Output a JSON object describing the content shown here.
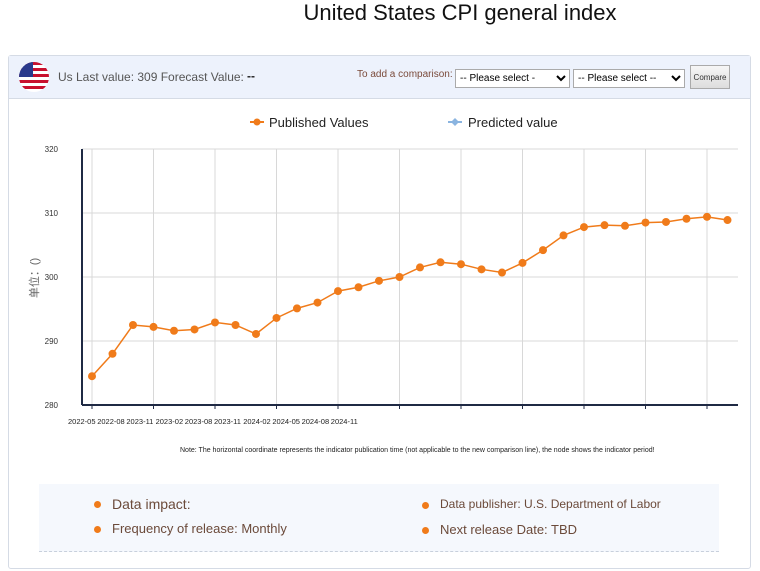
{
  "title": "United States CPI general index",
  "header": {
    "flag": "us-flag",
    "last_value": "Us Last value: 309 Forecast Value:",
    "forecast_value": "--",
    "comparison_label": "To add a comparison:",
    "select1": "-- Please select -",
    "select2": "-- Please select --",
    "compare_button": "Compare"
  },
  "note": "Note: The horizontal coordinate represents the indicator publication time (not applicable to the new comparison line), the node shows the indicator period!",
  "info": {
    "data_impact": "Data impact:",
    "frequency": "Frequency of release: Monthly",
    "publisher": "Data publisher: U.S. Department of Labor",
    "next_release": "Next release Date: TBD"
  },
  "colors": {
    "published": "#f07b1a",
    "predicted": "#8ab4e0",
    "axis": "#1f2a44"
  },
  "chart_data": {
    "type": "line",
    "title": "United States CPI general index",
    "ylabel": "单位：()",
    "ylim": [
      280,
      320
    ],
    "yticks": [
      280,
      290,
      300,
      310,
      320
    ],
    "xtick_labels": [
      "2022-05",
      "2022-08",
      "2023-11",
      "2023-02",
      "2023-08",
      "2023-11",
      "2024-02",
      "2024-05",
      "2024-08",
      "2024-11"
    ],
    "legend": [
      "Published Values",
      "Predicted value"
    ],
    "legend_position": "top",
    "grid": true,
    "series": [
      {
        "name": "Published Values",
        "values": [
          284.5,
          288,
          292.5,
          292.2,
          291.6,
          291.8,
          292.9,
          292.5,
          291.1,
          293.6,
          295.1,
          296,
          297.8,
          298.4,
          299.4,
          300,
          301.5,
          302.3,
          302,
          301.2,
          300.7,
          302.2,
          304.2,
          306.5,
          307.8,
          308.1,
          308,
          308.5,
          308.6,
          309.1,
          309.4,
          308.9
        ]
      },
      {
        "name": "Predicted value",
        "values": []
      }
    ]
  }
}
